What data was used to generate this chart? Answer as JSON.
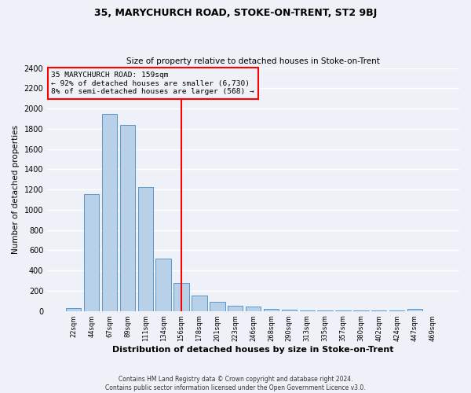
{
  "title": "35, MARYCHURCH ROAD, STOKE-ON-TRENT, ST2 9BJ",
  "subtitle": "Size of property relative to detached houses in Stoke-on-Trent",
  "xlabel": "Distribution of detached houses by size in Stoke-on-Trent",
  "ylabel": "Number of detached properties",
  "bar_labels": [
    "22sqm",
    "44sqm",
    "67sqm",
    "89sqm",
    "111sqm",
    "134sqm",
    "156sqm",
    "178sqm",
    "201sqm",
    "223sqm",
    "246sqm",
    "268sqm",
    "290sqm",
    "313sqm",
    "335sqm",
    "357sqm",
    "380sqm",
    "402sqm",
    "424sqm",
    "447sqm",
    "469sqm"
  ],
  "bar_values": [
    30,
    1155,
    1950,
    1840,
    1225,
    515,
    275,
    155,
    90,
    55,
    45,
    20,
    15,
    8,
    5,
    3,
    2,
    2,
    2,
    20,
    0
  ],
  "bar_color": "#b8d0e8",
  "bar_edge_color": "#5a96c8",
  "vline_index": 6,
  "vline_color": "red",
  "ylim": [
    0,
    2400
  ],
  "yticks": [
    0,
    200,
    400,
    600,
    800,
    1000,
    1200,
    1400,
    1600,
    1800,
    2000,
    2200,
    2400
  ],
  "annotation_title": "35 MARYCHURCH ROAD: 159sqm",
  "annotation_line1": "← 92% of detached houses are smaller (6,730)",
  "annotation_line2": "8% of semi-detached houses are larger (568) →",
  "annotation_box_color": "red",
  "footer_line1": "Contains HM Land Registry data © Crown copyright and database right 2024.",
  "footer_line2": "Contains public sector information licensed under the Open Government Licence v3.0.",
  "bg_color": "#eef2f8",
  "grid_color": "white"
}
